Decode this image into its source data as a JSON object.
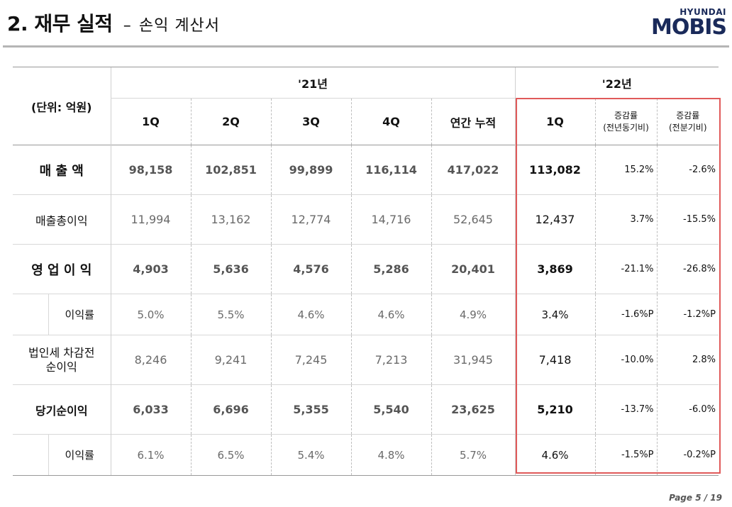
{
  "header": {
    "title_main": "2. 재무 실적",
    "title_dash": "–",
    "title_sub": "손익 계산서",
    "logo_top": "HYUNDAI",
    "logo_bottom": "MOBIS"
  },
  "table": {
    "unit_label": "(단위: 억원)",
    "year21": "'21년",
    "year22": "'22년",
    "q_headers": [
      "1Q",
      "2Q",
      "3Q",
      "4Q"
    ],
    "annual_header": "연간 누적",
    "q22_header": "1Q",
    "yoy_header_1": "증감률",
    "yoy_header_2": "(전년동기비)",
    "qoq_header_1": "증감률",
    "qoq_header_2": "(전분기비)",
    "rows": [
      {
        "label": "매 출 액",
        "values": [
          "98,158",
          "102,851",
          "99,899",
          "116,114",
          "417,022"
        ],
        "q22": "113,082",
        "yoy": "15.2%",
        "qoq": "-2.6%"
      },
      {
        "label": "매출총이익",
        "values": [
          "11,994",
          "13,162",
          "12,774",
          "14,716",
          "52,645"
        ],
        "q22": "12,437",
        "yoy": "3.7%",
        "qoq": "-15.5%"
      },
      {
        "label": "영 업 이 익",
        "values": [
          "4,903",
          "5,636",
          "4,576",
          "5,286",
          "20,401"
        ],
        "q22": "3,869",
        "yoy": "-21.1%",
        "qoq": "-26.8%"
      },
      {
        "label": "이익률",
        "values": [
          "5.0%",
          "5.5%",
          "4.6%",
          "4.6%",
          "4.9%"
        ],
        "q22": "3.4%",
        "yoy": "-1.6%P",
        "qoq": "-1.2%P"
      },
      {
        "label_1": "법인세 차감전",
        "label_2": "순이익",
        "values": [
          "8,246",
          "9,241",
          "7,245",
          "7,213",
          "31,945"
        ],
        "q22": "7,418",
        "yoy": "-10.0%",
        "qoq": "2.8%"
      },
      {
        "label": "당기순이익",
        "values": [
          "6,033",
          "6,696",
          "5,355",
          "5,540",
          "23,625"
        ],
        "q22": "5,210",
        "yoy": "-13.7%",
        "qoq": "-6.0%"
      },
      {
        "label": "이익률",
        "values": [
          "6.1%",
          "6.5%",
          "5.4%",
          "4.8%",
          "5.7%"
        ],
        "q22": "4.6%",
        "yoy": "-1.5%P",
        "qoq": "-0.2%P"
      }
    ]
  },
  "footer": {
    "page": "Page 5 / 19"
  },
  "colors": {
    "highlight_box": "#e05a5a",
    "logo_navy": "#1a2a5a",
    "logo_red": "#c8102e"
  }
}
